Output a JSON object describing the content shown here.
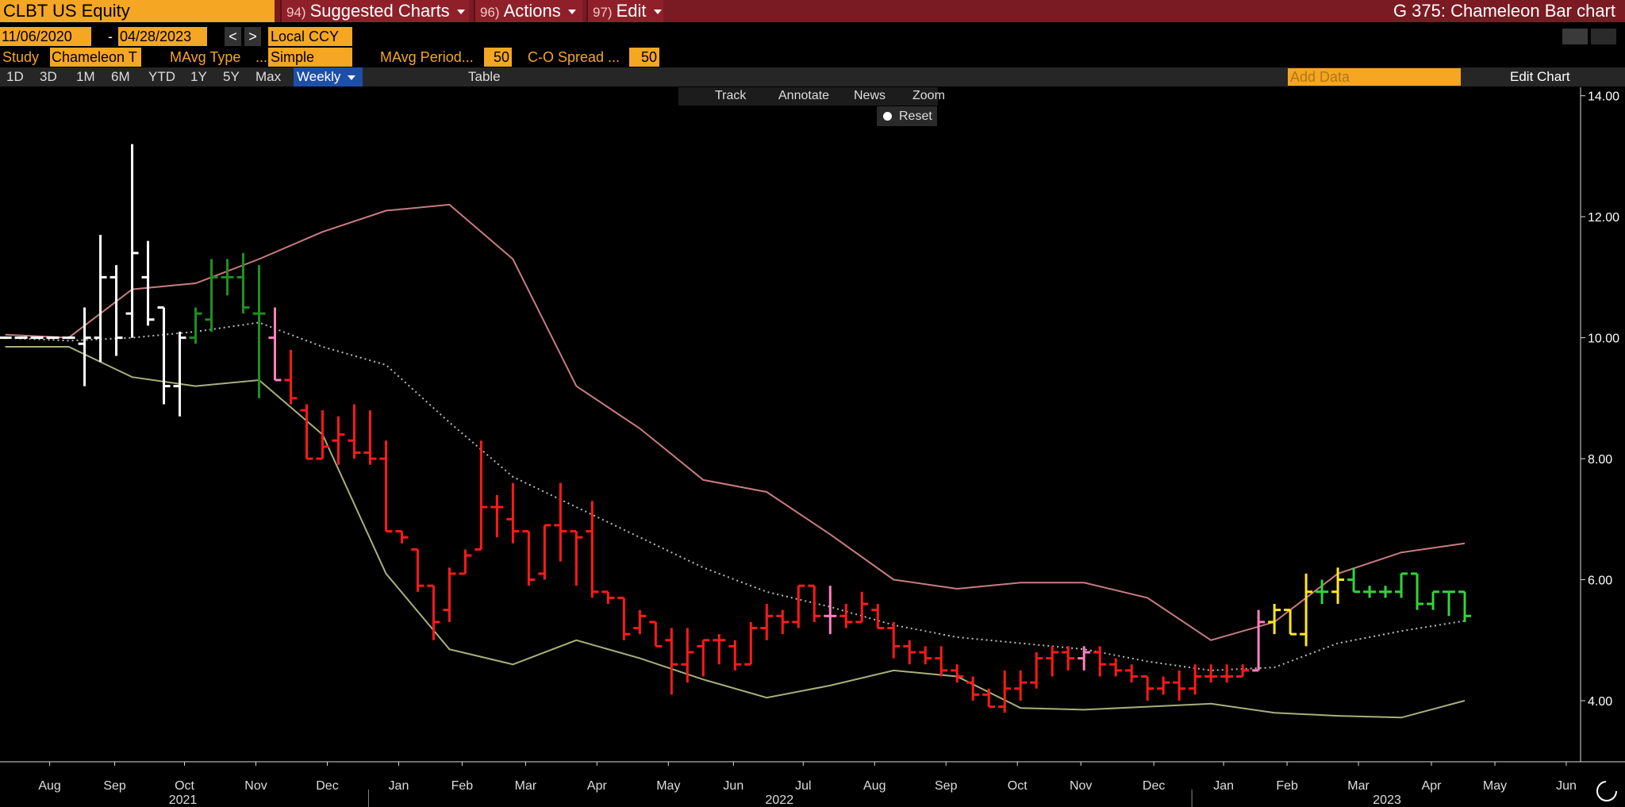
{
  "header": {
    "ticker": "CLBT US Equity",
    "menus": [
      {
        "num": "94)",
        "label": "Suggested Charts"
      },
      {
        "num": "96)",
        "label": "Actions"
      },
      {
        "num": "97)",
        "label": "Edit"
      }
    ],
    "title": "G 375: Chameleon Bar chart"
  },
  "controls": {
    "start_date": "11/06/2020",
    "dash": "-",
    "end_date": "04/28/2023",
    "prev": "<",
    "next": ">",
    "currency": "Local CCY",
    "study_label": "Study",
    "study": "Chameleon T",
    "mavg_type_label": "MAvg Type",
    "mavg_type_more": "...",
    "mavg_type": "Simple",
    "mavg_period_label": "MAvg Period...",
    "mavg_period": "50",
    "spread_label": "C-O Spread ...",
    "spread": "50"
  },
  "toolbar": {
    "ranges": [
      "1D",
      "3D",
      "1M",
      "6M",
      "YTD",
      "1Y",
      "5Y",
      "Max"
    ],
    "frequency": "Weekly",
    "table": "Table",
    "add_data": "Add Data",
    "edit_chart": "Edit Chart"
  },
  "chart_tools": {
    "items": [
      "Track",
      "Annotate",
      "News",
      "Zoom"
    ],
    "reset": "Reset"
  },
  "chart_data": {
    "type": "ohlc",
    "x": [
      0,
      1,
      2,
      3,
      4,
      5,
      6,
      7,
      8,
      9,
      10,
      11,
      12,
      13,
      14,
      15,
      16,
      17,
      18,
      19,
      20,
      21,
      22,
      23,
      24,
      25,
      26,
      27,
      28,
      29,
      30,
      31,
      32,
      33,
      34,
      35,
      36,
      37,
      38,
      39,
      40,
      41,
      42,
      43,
      44,
      45,
      46,
      47,
      48,
      49,
      50,
      51,
      52,
      53,
      54,
      55,
      56,
      57,
      58,
      59,
      60,
      61,
      62,
      63,
      64,
      65,
      66,
      67,
      68,
      69,
      70,
      71,
      72,
      73,
      74,
      75,
      76,
      77,
      78,
      79,
      80,
      81,
      82,
      83,
      84,
      85,
      86,
      87,
      88,
      89,
      90,
      91,
      92
    ],
    "open": [
      10,
      10,
      10,
      10,
      10,
      9.9,
      10.0,
      11.0,
      10.4,
      11.0,
      10.5,
      9.2,
      10.0,
      10.3,
      11.0,
      11.0,
      10.4,
      10.0,
      9.3,
      8.8,
      8.0,
      8.3,
      8.3,
      8.1,
      8.0,
      6.8,
      6.5,
      5.9,
      5.5,
      6.1,
      6.5,
      7.2,
      7.0,
      6.8,
      6.1,
      6.9,
      6.8,
      6.8,
      5.8,
      5.7,
      5.2,
      5.3,
      5.0,
      4.6,
      4.9,
      5.0,
      4.9,
      4.6,
      5.2,
      5.4,
      5.3,
      5.9,
      5.4,
      5.4,
      5.3,
      5.5,
      5.2,
      4.9,
      4.8,
      4.7,
      4.5,
      4.3,
      4.1,
      3.9,
      4.2,
      4.3,
      4.7,
      4.8,
      4.7,
      4.8,
      4.6,
      4.5,
      4.4,
      4.2,
      4.3,
      4.2,
      4.4,
      4.4,
      4.4,
      4.5,
      5.3,
      5.5,
      5.1,
      5.8,
      5.8,
      6.0,
      5.8,
      5.8,
      5.8,
      6.1,
      5.6,
      5.8,
      5.8
    ],
    "high": [
      10.02,
      10.02,
      10.02,
      10.02,
      10.02,
      10.5,
      11.7,
      11.2,
      13.2,
      11.6,
      10.5,
      10.1,
      10.5,
      11.3,
      11.3,
      11.4,
      11.2,
      10.5,
      9.8,
      8.9,
      8.8,
      8.7,
      8.9,
      8.8,
      8.3,
      6.8,
      6.5,
      5.9,
      6.2,
      6.5,
      8.3,
      7.4,
      7.6,
      6.8,
      6.9,
      7.6,
      6.8,
      7.3,
      5.8,
      5.7,
      5.5,
      5.3,
      5.2,
      5.2,
      5.0,
      5.1,
      5.0,
      5.3,
      5.6,
      5.5,
      5.9,
      5.9,
      5.9,
      5.6,
      5.8,
      5.6,
      5.3,
      5.0,
      4.9,
      4.9,
      4.6,
      4.4,
      4.2,
      4.5,
      4.5,
      4.8,
      4.9,
      4.9,
      4.9,
      4.9,
      4.7,
      4.6,
      4.4,
      4.4,
      4.5,
      4.6,
      4.6,
      4.6,
      4.6,
      5.5,
      5.6,
      5.5,
      6.1,
      6.0,
      6.2,
      6.2,
      5.9,
      5.9,
      6.1,
      6.1,
      5.8,
      5.8,
      5.8
    ],
    "low": [
      9.98,
      9.98,
      9.98,
      9.98,
      9.98,
      9.2,
      9.6,
      9.7,
      10.0,
      10.2,
      8.9,
      8.7,
      9.9,
      10.1,
      10.7,
      10.4,
      9.0,
      9.3,
      8.9,
      8.0,
      8.0,
      7.9,
      8.0,
      7.9,
      6.8,
      6.6,
      5.8,
      5.0,
      5.3,
      6.1,
      6.5,
      6.7,
      6.6,
      5.9,
      6.0,
      6.3,
      5.9,
      5.7,
      5.6,
      5.0,
      5.1,
      4.9,
      4.1,
      4.3,
      4.4,
      4.6,
      4.5,
      4.6,
      5.0,
      5.1,
      5.2,
      5.3,
      5.1,
      5.2,
      5.3,
      5.2,
      4.7,
      4.6,
      4.6,
      4.4,
      4.3,
      4.0,
      3.9,
      3.8,
      4.0,
      4.2,
      4.4,
      4.5,
      4.5,
      4.4,
      4.4,
      4.3,
      4.0,
      4.1,
      4.0,
      4.1,
      4.3,
      4.3,
      4.4,
      4.5,
      5.1,
      5.1,
      4.9,
      5.6,
      5.6,
      5.8,
      5.7,
      5.7,
      5.7,
      5.5,
      5.5,
      5.4,
      5.3
    ],
    "close": [
      10,
      10,
      10,
      10,
      10,
      10.0,
      11.0,
      10.0,
      11.4,
      10.3,
      9.2,
      10.0,
      10.4,
      11.0,
      11.0,
      10.5,
      10.4,
      9.3,
      9.0,
      8.0,
      8.2,
      8.4,
      8.1,
      8.0,
      6.8,
      6.7,
      5.9,
      5.3,
      6.1,
      6.4,
      7.2,
      7.2,
      6.8,
      6.0,
      6.9,
      6.8,
      6.7,
      5.8,
      5.7,
      5.1,
      5.4,
      4.9,
      4.6,
      4.8,
      5.0,
      5.0,
      4.6,
      5.2,
      5.4,
      5.3,
      5.9,
      5.4,
      5.4,
      5.3,
      5.6,
      5.2,
      4.9,
      4.8,
      4.7,
      4.5,
      4.4,
      4.1,
      3.9,
      4.2,
      4.3,
      4.7,
      4.8,
      4.7,
      4.8,
      4.6,
      4.5,
      4.4,
      4.2,
      4.3,
      4.2,
      4.4,
      4.4,
      4.4,
      4.5,
      5.3,
      5.5,
      5.1,
      5.8,
      5.8,
      6.0,
      5.8,
      5.8,
      5.8,
      6.1,
      5.6,
      5.8,
      5.8,
      5.4
    ],
    "bar_colors": [
      "#ffffff",
      "#ffffff",
      "#ffffff",
      "#ffffff",
      "#ffffff",
      "#ffffff",
      "#ffffff",
      "#ffffff",
      "#ffffff",
      "#ffffff",
      "#ffffff",
      "#ffffff",
      "#1f8f25",
      "#1f8f25",
      "#1f8f25",
      "#1f8f25",
      "#1f8f25",
      "#ff80c0",
      "#ff1a1a",
      "#ff1a1a",
      "#ff1a1a",
      "#ff1a1a",
      "#ff1a1a",
      "#ff1a1a",
      "#ff1a1a",
      "#ff1a1a",
      "#ff1a1a",
      "#ff1a1a",
      "#ff1a1a",
      "#ff1a1a",
      "#ff1a1a",
      "#ff1a1a",
      "#ff1a1a",
      "#ff1a1a",
      "#ff1a1a",
      "#ff1a1a",
      "#ff1a1a",
      "#ff1a1a",
      "#ff1a1a",
      "#ff1a1a",
      "#ff1a1a",
      "#ff1a1a",
      "#ff1a1a",
      "#ff1a1a",
      "#ff1a1a",
      "#ff1a1a",
      "#ff1a1a",
      "#ff1a1a",
      "#ff1a1a",
      "#ff1a1a",
      "#ff1a1a",
      "#ff1a1a",
      "#ff80c0",
      "#ff1a1a",
      "#ff1a1a",
      "#ff1a1a",
      "#ff1a1a",
      "#ff1a1a",
      "#ff1a1a",
      "#ff1a1a",
      "#ff1a1a",
      "#ff1a1a",
      "#ff1a1a",
      "#ff1a1a",
      "#ff1a1a",
      "#ff1a1a",
      "#ff1a1a",
      "#ff1a1a",
      "#ff80c0",
      "#ff1a1a",
      "#ff1a1a",
      "#ff1a1a",
      "#ff1a1a",
      "#ff1a1a",
      "#ff1a1a",
      "#ff1a1a",
      "#ff1a1a",
      "#ff1a1a",
      "#ff1a1a",
      "#ff80c0",
      "#ffe81a",
      "#ffe81a",
      "#ffe81a",
      "#33d43d",
      "#ffe81a",
      "#33d43d",
      "#33d43d",
      "#33d43d",
      "#33d43d",
      "#33d43d",
      "#33d43d",
      "#33d43d",
      "#33d43d"
    ],
    "lines": [
      {
        "color": "#c87c82",
        "style": "solid",
        "x": [
          0,
          4,
          8,
          12,
          16,
          20,
          24,
          28,
          32,
          36,
          40,
          44,
          48,
          52,
          56,
          60,
          64,
          68,
          72,
          76,
          80,
          84,
          88,
          92
        ],
        "values": [
          10.05,
          10.0,
          10.8,
          10.9,
          11.3,
          11.75,
          12.1,
          12.2,
          11.3,
          9.2,
          8.5,
          7.65,
          7.45,
          6.75,
          6.0,
          5.85,
          5.95,
          5.95,
          5.7,
          5.0,
          5.3,
          6.1,
          6.45,
          6.6
        ]
      },
      {
        "color": "#bbbbbb",
        "style": "dotted",
        "x": [
          0,
          4,
          8,
          12,
          16,
          20,
          24,
          28,
          32,
          36,
          40,
          44,
          48,
          52,
          56,
          60,
          64,
          68,
          72,
          76,
          80,
          84,
          88,
          92
        ],
        "values": [
          10.0,
          9.95,
          10.0,
          10.1,
          10.25,
          9.85,
          9.55,
          8.6,
          7.7,
          7.2,
          6.7,
          6.2,
          5.8,
          5.55,
          5.25,
          5.05,
          4.95,
          4.85,
          4.65,
          4.5,
          4.55,
          4.95,
          5.15,
          5.32
        ]
      },
      {
        "color": "#a8b07a",
        "style": "solid",
        "x": [
          0,
          4,
          8,
          12,
          16,
          20,
          24,
          28,
          32,
          36,
          40,
          44,
          48,
          52,
          56,
          60,
          64,
          68,
          72,
          76,
          80,
          84,
          88,
          92
        ],
        "values": [
          9.85,
          9.85,
          9.35,
          9.2,
          9.3,
          8.4,
          6.1,
          4.85,
          4.6,
          5.0,
          4.7,
          4.35,
          4.05,
          4.25,
          4.5,
          4.4,
          3.88,
          3.85,
          3.9,
          3.95,
          3.8,
          3.75,
          3.72,
          4.0
        ]
      }
    ],
    "xlim": [
      -0.33,
      99.3
    ],
    "xticks": [
      {
        "value": 2.8,
        "label": "Aug"
      },
      {
        "value": 6.9,
        "label": "Sep"
      },
      {
        "value": 11.3,
        "label": "Oct"
      },
      {
        "value": 15.8,
        "label": "Nov"
      },
      {
        "value": 20.3,
        "label": "Dec"
      },
      {
        "value": 24.8,
        "label": "Jan"
      },
      {
        "value": 28.8,
        "label": "Feb"
      },
      {
        "value": 32.8,
        "label": "Mar"
      },
      {
        "value": 37.3,
        "label": "Apr"
      },
      {
        "value": 41.8,
        "label": "May"
      },
      {
        "value": 45.9,
        "label": "Jun"
      },
      {
        "value": 50.3,
        "label": "Jul"
      },
      {
        "value": 54.8,
        "label": "Aug"
      },
      {
        "value": 59.3,
        "label": "Sep"
      },
      {
        "value": 63.8,
        "label": "Oct"
      },
      {
        "value": 67.8,
        "label": "Nov"
      },
      {
        "value": 72.4,
        "label": "Dec"
      },
      {
        "value": 76.8,
        "label": "Jan"
      },
      {
        "value": 80.8,
        "label": "Feb"
      },
      {
        "value": 85.3,
        "label": "Mar"
      },
      {
        "value": 89.9,
        "label": "Apr"
      },
      {
        "value": 93.9,
        "label": "May"
      },
      {
        "value": 98.4,
        "label": "Jun"
      }
    ],
    "yearticks": [
      {
        "value": 11.2,
        "label": "2021"
      },
      {
        "value": 48.8,
        "label": "2022"
      },
      {
        "value": 87.1,
        "label": "2023"
      }
    ],
    "year_dividers": [
      22.9,
      74.8
    ],
    "ylim": [
      2.99,
      14.14
    ],
    "yticks": [
      {
        "value": 4,
        "label": "4.00"
      },
      {
        "value": 6,
        "label": "6.00"
      },
      {
        "value": 8,
        "label": "8.00"
      },
      {
        "value": 10,
        "label": "10.00"
      },
      {
        "value": 12,
        "label": "12.00"
      },
      {
        "value": 14,
        "label": "14.00"
      }
    ]
  }
}
